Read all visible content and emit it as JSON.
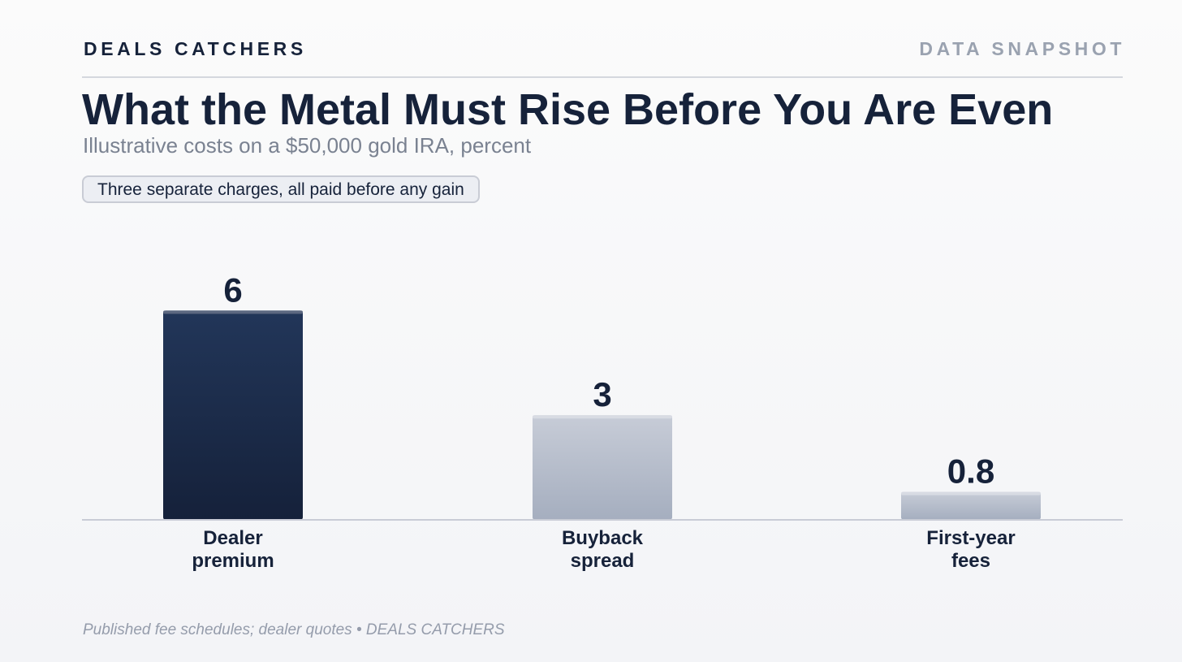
{
  "header": {
    "brand": "DEALS CATCHERS",
    "tagline": "DATA SNAPSHOT"
  },
  "chart_data": {
    "type": "bar",
    "title": "What the Metal Must Rise Before You Are Even",
    "subtitle": "Illustrative costs on a $50,000 gold IRA, percent",
    "annotation": "Three separate charges, all paid before any gain",
    "categories": [
      [
        "Dealer",
        "premium"
      ],
      [
        "Buyback",
        "spread"
      ],
      [
        "First-year",
        "fees"
      ]
    ],
    "values": [
      6,
      3,
      0.8
    ],
    "value_labels": [
      "6",
      "3",
      "0.8"
    ],
    "ylim": [
      0,
      7.5
    ],
    "grid": false,
    "colors": {
      "highlight_top": "#223659",
      "highlight_bottom": "#15213a",
      "highlight_cap": "#5c6880",
      "muted_top": "#c7ccd7",
      "muted_bottom": "#a5aebf",
      "muted_cap": "#d8dbe3",
      "axis": "#c9ccd6",
      "text": "#16223a"
    }
  },
  "footer": {
    "source": "Published fee schedules; dealer quotes • DEALS CATCHERS"
  }
}
